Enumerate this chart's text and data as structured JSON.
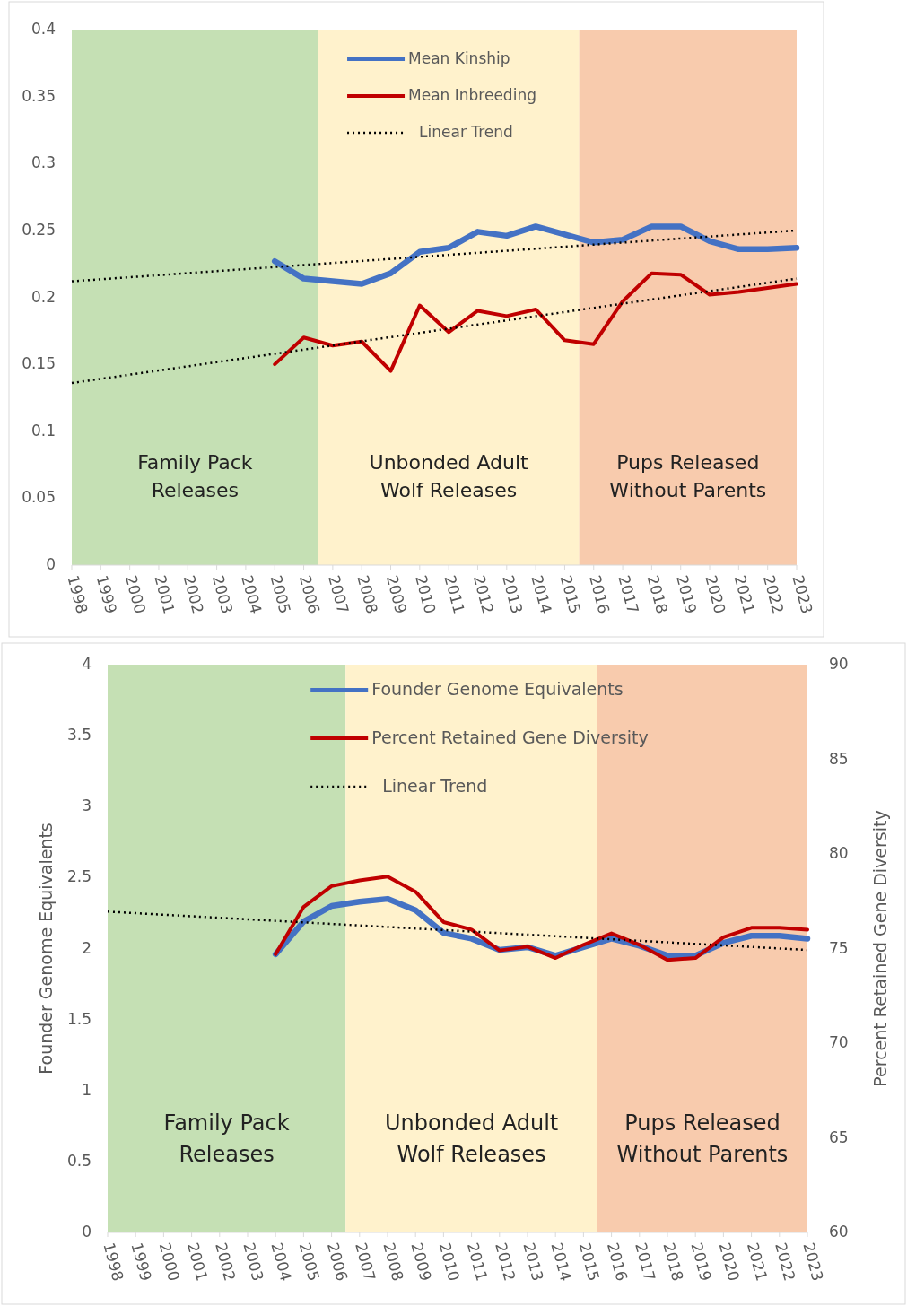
{
  "chart_data": [
    {
      "type": "line",
      "xlim": [
        1998,
        2023
      ],
      "xticks": [
        1998,
        1999,
        2000,
        2001,
        2002,
        2003,
        2004,
        2005,
        2006,
        2007,
        2008,
        2009,
        2010,
        2011,
        2012,
        2013,
        2014,
        2015,
        2016,
        2017,
        2018,
        2019,
        2020,
        2021,
        2022,
        2023
      ],
      "ylim": [
        0,
        0.4
      ],
      "yticks": [
        0,
        0.05,
        0.1,
        0.15,
        0.2,
        0.25,
        0.3,
        0.35,
        0.4
      ],
      "legend": "top",
      "bands": [
        {
          "axis": "x",
          "from": 1998,
          "to": 2006.5,
          "label": "Family Pack\nReleases",
          "color": "#c5e0b4"
        },
        {
          "axis": "x",
          "from": 2006.5,
          "to": 2015.5,
          "label": "Unbonded Adult\nWolf Releases",
          "color": "#fff2cc"
        },
        {
          "axis": "x",
          "from": 2015.5,
          "to": 2023,
          "label": "Pups Released\nWithout Parents",
          "color": "#f8cbad"
        }
      ],
      "series": [
        {
          "name": "Mean Kinship",
          "color": "#4472c4",
          "line_style": "solid",
          "x": [
            2005,
            2006,
            2007,
            2008,
            2009,
            2010,
            2011,
            2012,
            2013,
            2014,
            2015,
            2016,
            2017,
            2018,
            2019,
            2020,
            2021,
            2022,
            2023
          ],
          "values": [
            0.227,
            0.214,
            0.212,
            0.21,
            0.218,
            0.234,
            0.237,
            0.249,
            0.246,
            0.253,
            0.247,
            0.241,
            0.243,
            0.253,
            0.253,
            0.242,
            0.236,
            0.236,
            0.237
          ]
        },
        {
          "name": "Mean Inbreeding",
          "color": "#c00000",
          "line_style": "solid",
          "x": [
            2005,
            2006,
            2007,
            2008,
            2009,
            2010,
            2011,
            2012,
            2013,
            2014,
            2015,
            2016,
            2017,
            2018,
            2019,
            2020,
            2021,
            2022,
            2023
          ],
          "values": [
            0.15,
            0.17,
            0.164,
            0.167,
            0.145,
            0.194,
            0.174,
            0.19,
            0.186,
            0.191,
            0.168,
            0.165,
            0.197,
            0.218,
            0.217,
            0.202,
            0.204,
            0.207,
            0.21
          ]
        },
        {
          "name": "Linear Trend",
          "type": "line",
          "color": "#000000",
          "line_style": "dotted",
          "x": [
            1998,
            2023
          ],
          "values": [
            0.212,
            0.25
          ]
        },
        {
          "type": "line",
          "color": "#000000",
          "line_style": "dotted",
          "x": [
            1998,
            2023
          ],
          "values": [
            0.136,
            0.214
          ]
        }
      ]
    },
    {
      "type": "line",
      "xlim": [
        1998,
        2023
      ],
      "xticks": [
        1998,
        1999,
        2000,
        2001,
        2002,
        2003,
        2004,
        2005,
        2006,
        2007,
        2008,
        2009,
        2010,
        2011,
        2012,
        2013,
        2014,
        2015,
        2016,
        2017,
        2018,
        2019,
        2020,
        2021,
        2022,
        2023
      ],
      "ylim": [
        0,
        4
      ],
      "yticks": [
        0,
        0.5,
        1,
        1.5,
        2,
        2.5,
        3,
        3.5,
        4
      ],
      "y2lim": [
        60,
        90
      ],
      "y2ticks": [
        60,
        65,
        70,
        75,
        80,
        85,
        90
      ],
      "ylabel": "Founder Genome Equivalents",
      "y2label": "Percent Retained Gene Diversity",
      "legend": "top",
      "bands": [
        {
          "axis": "x",
          "from": 1998,
          "to": 2006.5,
          "label": "Family Pack\nReleases",
          "color": "#c5e0b4"
        },
        {
          "axis": "x",
          "from": 2006.5,
          "to": 2015.5,
          "label": "Unbonded Adult\nWolf Releases",
          "color": "#fff2cc"
        },
        {
          "axis": "x",
          "from": 2015.5,
          "to": 2023,
          "label": "Pups Released\nWithout Parents",
          "color": "#f8cbad"
        }
      ],
      "series": [
        {
          "name": "Founder Genome Equivalents",
          "color": "#4472c4",
          "line_style": "solid",
          "x": [
            2004,
            2005,
            2006,
            2007,
            2008,
            2009,
            2010,
            2011,
            2012,
            2013,
            2014,
            2015,
            2016,
            2017,
            2018,
            2019,
            2020,
            2021,
            2022,
            2023
          ],
          "values": [
            1.96,
            2.19,
            2.3,
            2.33,
            2.35,
            2.27,
            2.11,
            2.07,
            1.99,
            2.01,
            1.95,
            2.01,
            2.07,
            2.02,
            1.95,
            1.95,
            2.04,
            2.09,
            2.09,
            2.07
          ]
        },
        {
          "name": "Percent Retained Gene Diversity",
          "axis": "y2",
          "color": "#c00000",
          "line_style": "solid",
          "x": [
            2004,
            2005,
            2006,
            2007,
            2008,
            2009,
            2010,
            2011,
            2012,
            2013,
            2014,
            2015,
            2016,
            2017,
            2018,
            2019,
            2020,
            2021,
            2022,
            2023
          ],
          "values": [
            74.7,
            77.2,
            78.3,
            78.6,
            78.8,
            78.0,
            76.4,
            76.0,
            74.9,
            75.1,
            74.5,
            75.2,
            75.8,
            75.2,
            74.4,
            74.5,
            75.6,
            76.1,
            76.1,
            76.0
          ]
        },
        {
          "name": "Linear Trend",
          "type": "line",
          "color": "#000000",
          "line_style": "dotted",
          "x": [
            1998,
            2023
          ],
          "values": [
            2.26,
            1.99
          ]
        }
      ]
    }
  ]
}
